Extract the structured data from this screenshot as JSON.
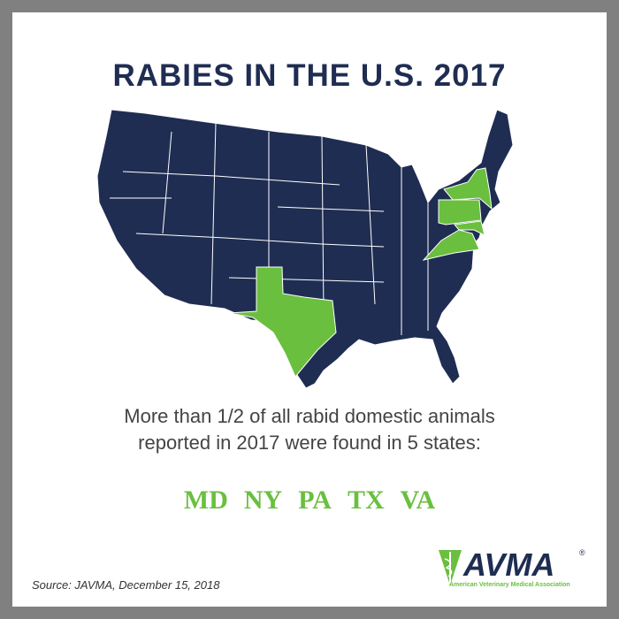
{
  "title": "RABIES IN THE U.S. 2017",
  "description": [
    "More than 1/2 of all rabid domestic animals",
    "reported in 2017 were found in 5 states:"
  ],
  "states": [
    "MD",
    "NY",
    "PA",
    "TX",
    "VA"
  ],
  "source": "Source: JAVMA, December 15, 2018",
  "logo": {
    "name": "AVMA",
    "registered": "®",
    "tagline": "American Veterinary Medical Association"
  }
}
